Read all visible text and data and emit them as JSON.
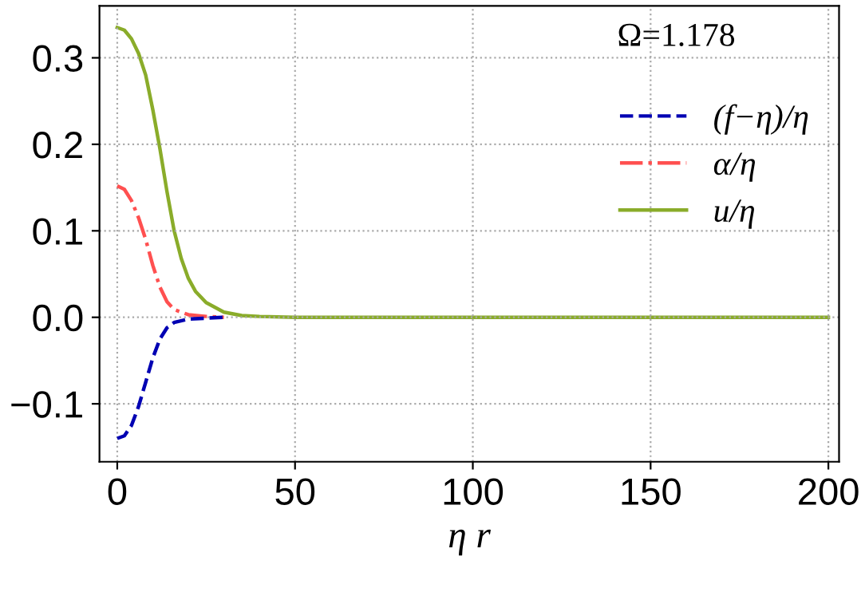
{
  "chart_data": {
    "type": "line",
    "xlabel": "η r",
    "annotations": [
      "Ω=1.178"
    ],
    "xlim": [
      -5,
      203
    ],
    "ylim": [
      -0.167,
      0.36
    ],
    "xticks": [
      0,
      50,
      100,
      150,
      200
    ],
    "yticks": [
      {
        "value": -0.1,
        "label": "−0.1"
      },
      {
        "value": 0,
        "label": "0.0"
      },
      {
        "value": 0.1,
        "label": "0.1"
      },
      {
        "value": 0.2,
        "label": "0.2"
      },
      {
        "value": 0.3,
        "label": "0.3"
      }
    ],
    "grid": true,
    "legend": "top right",
    "series": [
      {
        "name": "(f−η)/η",
        "color": "#0000b3",
        "line_style": "dashed",
        "x": [
          0,
          2,
          4,
          6,
          8,
          10,
          12,
          14,
          16,
          20,
          25,
          30
        ],
        "values": [
          -0.14,
          -0.137,
          -0.125,
          -0.103,
          -0.075,
          -0.047,
          -0.025,
          -0.012,
          -0.006,
          -0.002,
          -0.001,
          0
        ]
      },
      {
        "name": "α/η",
        "color": "#ff5050",
        "line_style": "dashdot",
        "x": [
          0,
          2,
          4,
          6,
          8,
          10,
          12,
          14,
          16,
          20,
          25,
          30
        ],
        "values": [
          0.152,
          0.148,
          0.135,
          0.115,
          0.09,
          0.06,
          0.035,
          0.018,
          0.009,
          0.003,
          0.001,
          0
        ]
      },
      {
        "name": "u/η",
        "color": "#8aac2a",
        "line_style": "solid",
        "x": [
          0,
          2,
          4,
          6,
          8,
          10,
          12,
          14,
          16,
          18,
          20,
          22,
          25,
          30,
          35,
          40,
          50,
          100,
          150,
          200
        ],
        "values": [
          0.335,
          0.332,
          0.322,
          0.305,
          0.28,
          0.24,
          0.195,
          0.145,
          0.1,
          0.068,
          0.045,
          0.03,
          0.017,
          0.006,
          0.002,
          0.001,
          0,
          0,
          0,
          0
        ]
      }
    ]
  }
}
